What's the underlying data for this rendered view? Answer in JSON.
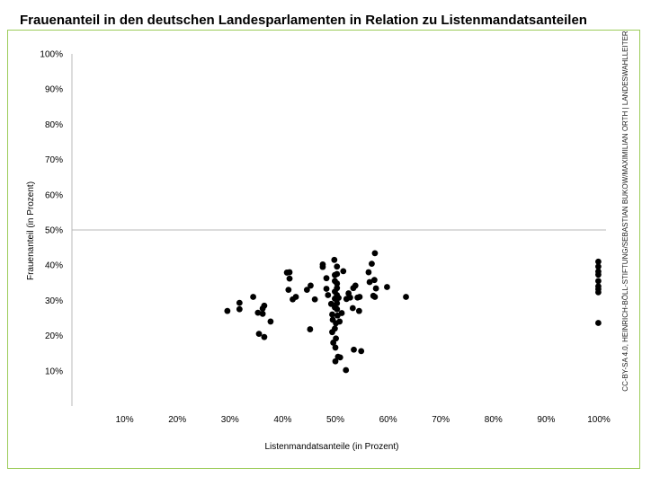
{
  "chart_data": {
    "type": "scatter",
    "title": "Frauenanteil in den deutschen Landesparlamenten in Relation zu Listenmandatsanteilen",
    "xlabel": "Listenmandatsanteile (in Prozent)",
    "ylabel": "Frauenanteil (in Prozent)",
    "xlim": [
      0,
      100
    ],
    "ylim": [
      0,
      100
    ],
    "x_ticks": [
      "10%",
      "20%",
      "30%",
      "40%",
      "50%",
      "60%",
      "70%",
      "80%",
      "90%",
      "100%"
    ],
    "y_ticks": [
      "10%",
      "20%",
      "30%",
      "40%",
      "50%",
      "60%",
      "70%",
      "80%",
      "90%",
      "100%"
    ],
    "reference_line_y": 50,
    "grid": false,
    "credit": "CC-BY-SA 4.0, HEINRICH-BÖLL-STIFTUNG/SEBASTIAN BUKOW/MAXIMILIAN ORTH | LANDESWAHLLEITER",
    "marker_color": "#000000",
    "points": [
      [
        29.5,
        27
      ],
      [
        31.8,
        29.3
      ],
      [
        31.8,
        27.5
      ],
      [
        34.4,
        31
      ],
      [
        35.3,
        26.5
      ],
      [
        36.2,
        26.2
      ],
      [
        36.2,
        27.7
      ],
      [
        36.5,
        28.5
      ],
      [
        35.5,
        20.5
      ],
      [
        36.5,
        19.6
      ],
      [
        37.7,
        24
      ],
      [
        40.8,
        37.9
      ],
      [
        41.3,
        38
      ],
      [
        41.3,
        36.2
      ],
      [
        41.1,
        33
      ],
      [
        41.9,
        30.3
      ],
      [
        42.5,
        31
      ],
      [
        44.6,
        33
      ],
      [
        45.3,
        34.2
      ],
      [
        45.2,
        21.8
      ],
      [
        46.1,
        30.3
      ],
      [
        47.6,
        40.2
      ],
      [
        47.6,
        39.5
      ],
      [
        48.3,
        33.3
      ],
      [
        48.6,
        31.5
      ],
      [
        48.3,
        36.3
      ],
      [
        49.2,
        29
      ],
      [
        49.4,
        26
      ],
      [
        49.5,
        24.5
      ],
      [
        49.4,
        21
      ],
      [
        49.6,
        18
      ],
      [
        49.8,
        41.5
      ],
      [
        49.9,
        37.2
      ],
      [
        49.9,
        35.5
      ],
      [
        49.9,
        32.5
      ],
      [
        49.9,
        30.5
      ],
      [
        49.9,
        28
      ],
      [
        49.9,
        22
      ],
      [
        50,
        12.7
      ],
      [
        50,
        16.6
      ],
      [
        50.1,
        19.2
      ],
      [
        50.1,
        23.5
      ],
      [
        50.3,
        39.6
      ],
      [
        50.3,
        37.5
      ],
      [
        50.3,
        34.8
      ],
      [
        50.3,
        33.5
      ],
      [
        50.3,
        31.5
      ],
      [
        50.3,
        29.2
      ],
      [
        50.3,
        27.5
      ],
      [
        50.4,
        25.7
      ],
      [
        50.5,
        14
      ],
      [
        50.6,
        30.7
      ],
      [
        50.8,
        24
      ],
      [
        51.2,
        26.4
      ],
      [
        50.9,
        13.8
      ],
      [
        51.5,
        38.3
      ],
      [
        52.1,
        30.4
      ],
      [
        52,
        10.2
      ],
      [
        52.5,
        32
      ],
      [
        52.8,
        30.8
      ],
      [
        53.3,
        27.8
      ],
      [
        53.4,
        33.5
      ],
      [
        53.8,
        34.2
      ],
      [
        53.5,
        16
      ],
      [
        54.2,
        30.8
      ],
      [
        54.5,
        27
      ],
      [
        54.6,
        31
      ],
      [
        54.9,
        15.6
      ],
      [
        56.3,
        38
      ],
      [
        56.5,
        35.2
      ],
      [
        56.9,
        40.4
      ],
      [
        57.2,
        31.3
      ],
      [
        57.4,
        35.8
      ],
      [
        57.5,
        43.4
      ],
      [
        57.5,
        31
      ],
      [
        57.7,
        33.4
      ],
      [
        59.8,
        33.8
      ],
      [
        63.4,
        31
      ],
      [
        99.9,
        41
      ],
      [
        99.9,
        39.6
      ],
      [
        99.9,
        38.2
      ],
      [
        99.9,
        37.3
      ],
      [
        99.9,
        35.5
      ],
      [
        99.9,
        34
      ],
      [
        99.9,
        33.2
      ],
      [
        99.9,
        32.3
      ],
      [
        99.9,
        23.6
      ]
    ]
  }
}
